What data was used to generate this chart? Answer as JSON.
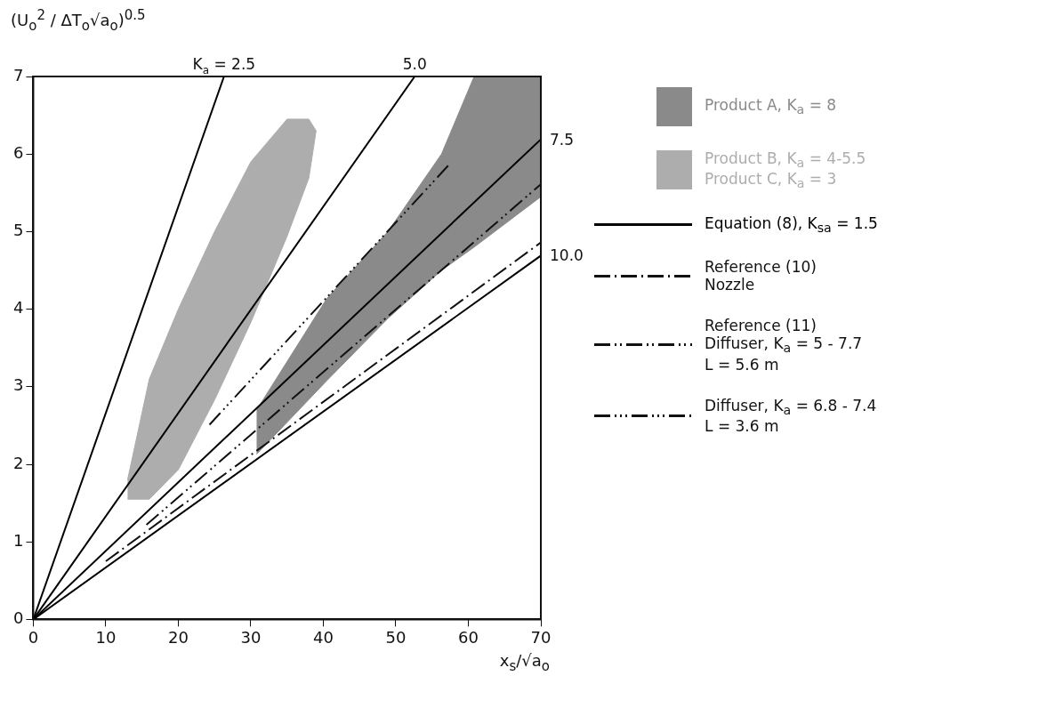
{
  "chart_data": {
    "type": "line",
    "xlabel": "x$_{s}$/√a$_{o}$",
    "ylabel": "(U$_{o}$$^{2}$ / ΔT$_{o}$√a$_{o}$)$^{0.5}$",
    "xlim": [
      0,
      70
    ],
    "ylim": [
      0,
      7
    ],
    "xticks": [
      0,
      10,
      20,
      30,
      40,
      50,
      60,
      70
    ],
    "yticks": [
      0,
      1,
      2,
      3,
      4,
      5,
      6,
      7
    ],
    "grid": false,
    "legend": "right",
    "marker": "none",
    "series": [
      {
        "name": "Product A,  K$_{a}$ = 8",
        "type": "area",
        "color": "#8a8a8a",
        "x": [
          30.8,
          40.5,
          48.9,
          56.3,
          60.8,
          70,
          70,
          60.8,
          56.3,
          48.9,
          40.5,
          30.8
        ],
        "values": [
          2.7,
          4.14,
          5.0,
          6.0,
          7,
          7,
          5.45,
          4.8,
          4.5,
          3.88,
          3.08,
          2.13
        ]
      },
      {
        "name": "Product B,  K$_{a}$ = 4-5.5\nProduct C,  K$_{a}$ = 3",
        "type": "area",
        "color": "#adadad",
        "x": [
          13,
          16,
          20,
          25,
          30,
          35,
          38,
          39,
          38,
          35,
          30,
          25,
          20,
          16,
          13
        ],
        "values": [
          1.8,
          3.1,
          4.0,
          5.0,
          5.9,
          6.45,
          6.45,
          6.3,
          5.69,
          4.94,
          3.83,
          2.83,
          1.93,
          1.55,
          1.55
        ]
      },
      {
        "name": "Equation (8), K$_{sa}$ = 1.5",
        "color": "#000000",
        "line_style": "solid",
        "x": [
          0,
          26.3
        ],
        "values": [
          0,
          7
        ]
      },
      {
        "color": "#000000",
        "line_style": "solid",
        "x": [
          0,
          52.6
        ],
        "values": [
          0,
          7
        ]
      },
      {
        "color": "#000000",
        "line_style": "solid",
        "x": [
          0,
          70
        ],
        "values": [
          0,
          6.19
        ]
      },
      {
        "color": "#000000",
        "line_style": "solid",
        "x": [
          0,
          70
        ],
        "values": [
          0,
          4.69
        ]
      },
      {
        "name": "Reference (10)\nNozzle",
        "color": "#111111",
        "line_style": "dashdot",
        "x": [
          10,
          70
        ],
        "values": [
          0.75,
          4.86
        ]
      },
      {
        "name": "Reference (11)\nDiffuser, K$_{a}$ = 5 - 7.7\nL = 5.6 m",
        "color": "#111111",
        "line_style": "dashdotdot",
        "x": [
          15.6,
          70
        ],
        "values": [
          1.22,
          5.61
        ]
      },
      {
        "name": "Diffuser, K$_{a}$ = 6.8 - 7.4\nL = 3.6 m",
        "color": "#111111",
        "line_style": "dashdotdotdot",
        "x": [
          24.3,
          57.6
        ],
        "values": [
          2.51,
          5.89
        ]
      }
    ],
    "annotations": [
      {
        "text": "K$_{a}$ = 2.5",
        "x": 26.3,
        "y": 7
      },
      {
        "text": "5.0",
        "x": 52.6,
        "y": 7
      },
      {
        "text": "7.5",
        "x": 70,
        "y": 6.19
      },
      {
        "text": "10.0",
        "x": 70,
        "y": 4.69
      }
    ]
  }
}
